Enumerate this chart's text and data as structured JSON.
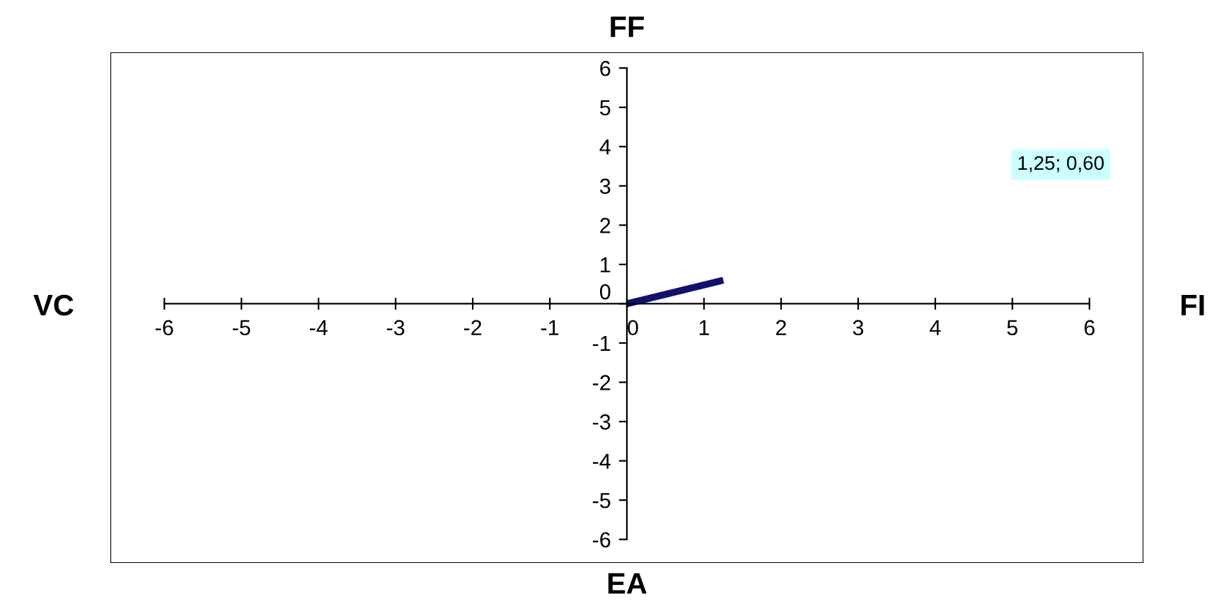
{
  "chart_data": {
    "type": "line",
    "x": [
      0,
      1.25
    ],
    "series": [
      {
        "color": "#10106e",
        "values": [
          0,
          0.6
        ]
      }
    ],
    "xlim": [
      -6.7,
      6.7
    ],
    "ylim": [
      -6.6,
      6.4
    ],
    "xticks": [
      -6,
      -5,
      -4,
      -3,
      -2,
      -1,
      0,
      1,
      2,
      3,
      4,
      5,
      6
    ],
    "yticks": [
      -6,
      -5,
      -4,
      -3,
      -2,
      -1,
      0,
      1,
      2,
      3,
      4,
      5,
      6
    ],
    "grid": false,
    "legend": false,
    "marker": "none",
    "line_style": "solid",
    "annotations": [
      "FF",
      "FI",
      "EA",
      "VC",
      "1,25; 0,60"
    ]
  }
}
